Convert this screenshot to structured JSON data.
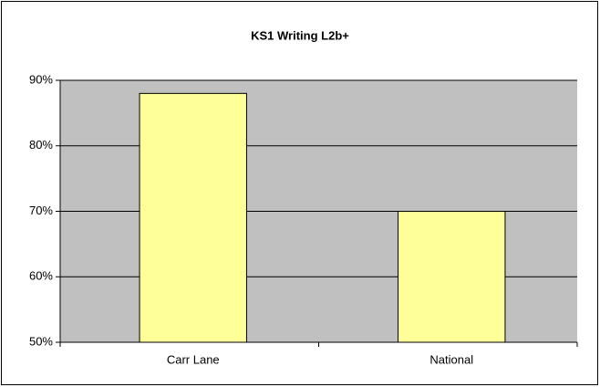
{
  "chart_data": {
    "type": "bar",
    "title": "KS1 Writing L2b+",
    "categories": [
      "Carr Lane",
      "National"
    ],
    "values": [
      88,
      70
    ],
    "color": "#ffff99",
    "ylim": [
      50,
      90
    ],
    "yticks": [
      {
        "value": 50,
        "label": "50%"
      },
      {
        "value": 60,
        "label": "60%"
      },
      {
        "value": 70,
        "label": "70%"
      },
      {
        "value": 80,
        "label": "80%"
      },
      {
        "value": 90,
        "label": "90%"
      }
    ],
    "grid": true
  }
}
